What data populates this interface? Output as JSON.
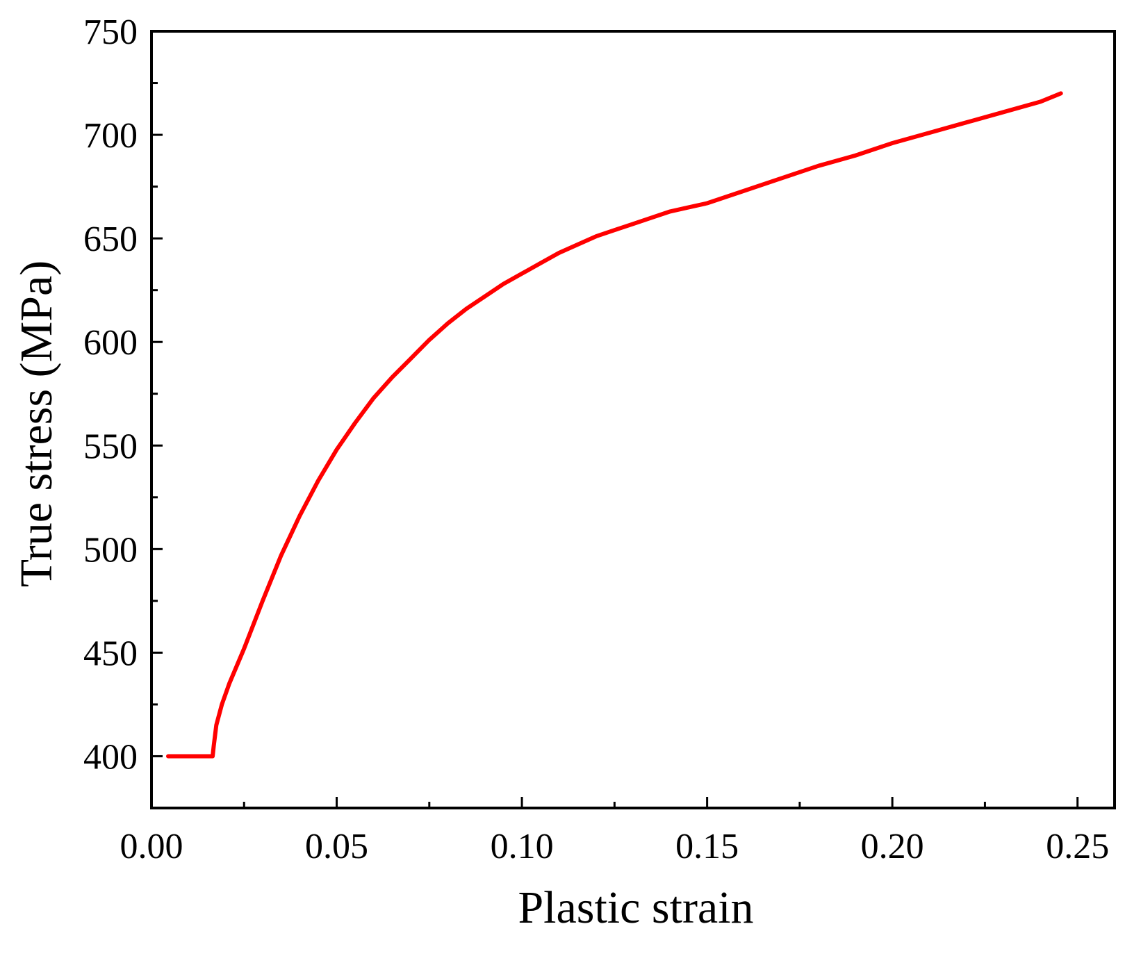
{
  "chart_data": {
    "type": "line",
    "xlabel": "Plastic strain",
    "ylabel": "True stress (MPa)",
    "xlim": [
      0.0,
      0.26
    ],
    "ylim": [
      375,
      750
    ],
    "x_ticks": [
      0.0,
      0.05,
      0.1,
      0.15,
      0.2,
      0.25
    ],
    "x_tick_labels": [
      "0.00",
      "0.05",
      "0.10",
      "0.15",
      "0.20",
      "0.25"
    ],
    "y_ticks": [
      400,
      450,
      500,
      550,
      600,
      650,
      700,
      750
    ],
    "y_tick_labels": [
      "400",
      "450",
      "500",
      "550",
      "600",
      "650",
      "700",
      "750"
    ],
    "grid": false,
    "colors": {
      "series": "#ff0000",
      "axes": "#000000"
    },
    "series": [
      {
        "x": [
          0.0045,
          0.0165,
          0.0168,
          0.0175,
          0.019,
          0.021,
          0.025,
          0.03,
          0.035,
          0.04,
          0.045,
          0.05,
          0.055,
          0.06,
          0.065,
          0.07,
          0.075,
          0.08,
          0.085,
          0.09,
          0.095,
          0.1,
          0.105,
          0.11,
          0.115,
          0.12,
          0.125,
          0.13,
          0.135,
          0.14,
          0.145,
          0.15,
          0.16,
          0.17,
          0.18,
          0.19,
          0.2,
          0.21,
          0.22,
          0.23,
          0.24,
          0.2455
        ],
        "y": [
          400,
          400,
          405,
          415,
          425,
          435,
          452,
          475,
          497,
          516,
          533,
          548,
          561,
          573,
          583,
          592,
          601,
          609,
          616,
          622,
          628,
          633,
          638,
          643,
          647,
          651,
          654,
          657,
          660,
          663,
          665,
          667,
          673,
          679,
          685,
          690,
          696,
          701,
          706,
          711,
          716,
          720
        ]
      }
    ]
  }
}
